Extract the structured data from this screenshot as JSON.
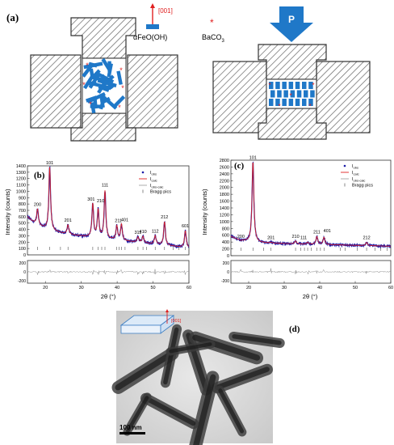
{
  "panel_a": {
    "label": "(a)",
    "arrow_label": "[001]",
    "legend_goethite": "αFeO(OH)",
    "legend_baco3": "BaCO",
    "legend_baco3_sub": "3",
    "pressure_label": "P",
    "colors": {
      "rod": "#1f78c8",
      "marker": "#e02020",
      "arrow": "#1f78c8",
      "hatch": "#555555"
    }
  },
  "panel_b": {
    "label": "(b)",
    "ylabel": "Intensity (counts)",
    "xlabel": "2θ (°)",
    "legend": {
      "obs": "I",
      "obs_sub": "obs",
      "calc": "I",
      "calc_sub": "calc",
      "diff": "I",
      "diff_sub": "obs-calc",
      "bragg": "Bragg pics"
    },
    "y_ticks": [
      "0",
      "100",
      "200",
      "300",
      "400",
      "500",
      "600",
      "700",
      "800",
      "900",
      "1000",
      "1100",
      "1200",
      "1300",
      "1400"
    ],
    "x_ticks": [
      "20",
      "30",
      "40",
      "50",
      "60"
    ],
    "residual_ticks": [
      "200",
      "0",
      "-200"
    ]
  },
  "panel_c": {
    "label": "(c)",
    "ylabel": "Intensity (counts)",
    "xlabel": "2θ (°)",
    "legend": {
      "obs": "I",
      "obs_sub": "obs",
      "calc": "I",
      "calc_sub": "calc",
      "diff": "I",
      "diff_sub": "obs-calc",
      "bragg": "Bragg pics"
    },
    "y_ticks": [
      "0",
      "200",
      "400",
      "600",
      "800",
      "1000",
      "1200",
      "1400",
      "1600",
      "1800",
      "2000",
      "2200",
      "2400",
      "2600",
      "2800"
    ],
    "x_ticks": [
      "20",
      "30",
      "40",
      "50",
      "60"
    ],
    "residual_ticks": [
      "200",
      "0",
      "-200"
    ]
  },
  "panel_d": {
    "label": "(d)",
    "inset_label": "[001]",
    "scalebar": "100 nm"
  },
  "chart_data": [
    {
      "type": "line",
      "id": "b",
      "xlim": [
        15,
        60
      ],
      "ylim": [
        0,
        1400
      ],
      "peaks": [
        {
          "label": "200",
          "x": 17.8,
          "y": 720
        },
        {
          "label": "101",
          "x": 21.2,
          "y": 1390
        },
        {
          "label": "201",
          "x": 26.3,
          "y": 470
        },
        {
          "label": "301",
          "x": 33.2,
          "y": 800
        },
        {
          "label": "210",
          "x": 34.7,
          "y": 700
        },
        {
          "label": "111",
          "x": 36.6,
          "y": 1000
        },
        {
          "label": "211",
          "x": 39.9,
          "y": 450
        },
        {
          "label": "401",
          "x": 41.2,
          "y": 480
        },
        {
          "label": "311",
          "x": 45.8,
          "y": 280
        },
        {
          "label": "410",
          "x": 47.2,
          "y": 290
        },
        {
          "label": "112",
          "x": 50.6,
          "y": 300
        },
        {
          "label": "212",
          "x": 53.2,
          "y": 520
        },
        {
          "label": "601",
          "x": 59.0,
          "y": 380
        }
      ],
      "bragg": [
        17.8,
        21.2,
        24.2,
        26.3,
        33.2,
        34.7,
        35.7,
        36.6,
        39.9,
        40.5,
        41.2,
        42.2,
        45.8,
        47.2,
        48.2,
        50.6,
        53.2,
        55.6,
        57.2,
        59.0
      ],
      "residual_ylim": [
        -250,
        250
      ]
    },
    {
      "type": "line",
      "id": "c",
      "xlim": [
        15,
        60
      ],
      "ylim": [
        0,
        2800
      ],
      "peaks": [
        {
          "label": "200",
          "x": 17.8,
          "y": 430
        },
        {
          "label": "101",
          "x": 21.2,
          "y": 2760
        },
        {
          "label": "201",
          "x": 26.3,
          "y": 390
        },
        {
          "label": "210",
          "x": 33.2,
          "y": 430
        },
        {
          "label": "111",
          "x": 36.6,
          "y": 390
        },
        {
          "label": "211",
          "x": 39.2,
          "y": 560
        },
        {
          "label": "401",
          "x": 41.2,
          "y": 540
        },
        {
          "label": "212",
          "x": 53.2,
          "y": 390
        }
      ],
      "bragg": [
        17.8,
        21.2,
        24.2,
        26.3,
        33.2,
        34.7,
        35.7,
        36.6,
        37.6,
        39.2,
        40.2,
        41.2,
        45.8,
        47.2,
        50.6,
        53.2,
        55.6,
        57.2,
        59.0
      ],
      "residual_ylim": [
        -250,
        250
      ]
    }
  ]
}
